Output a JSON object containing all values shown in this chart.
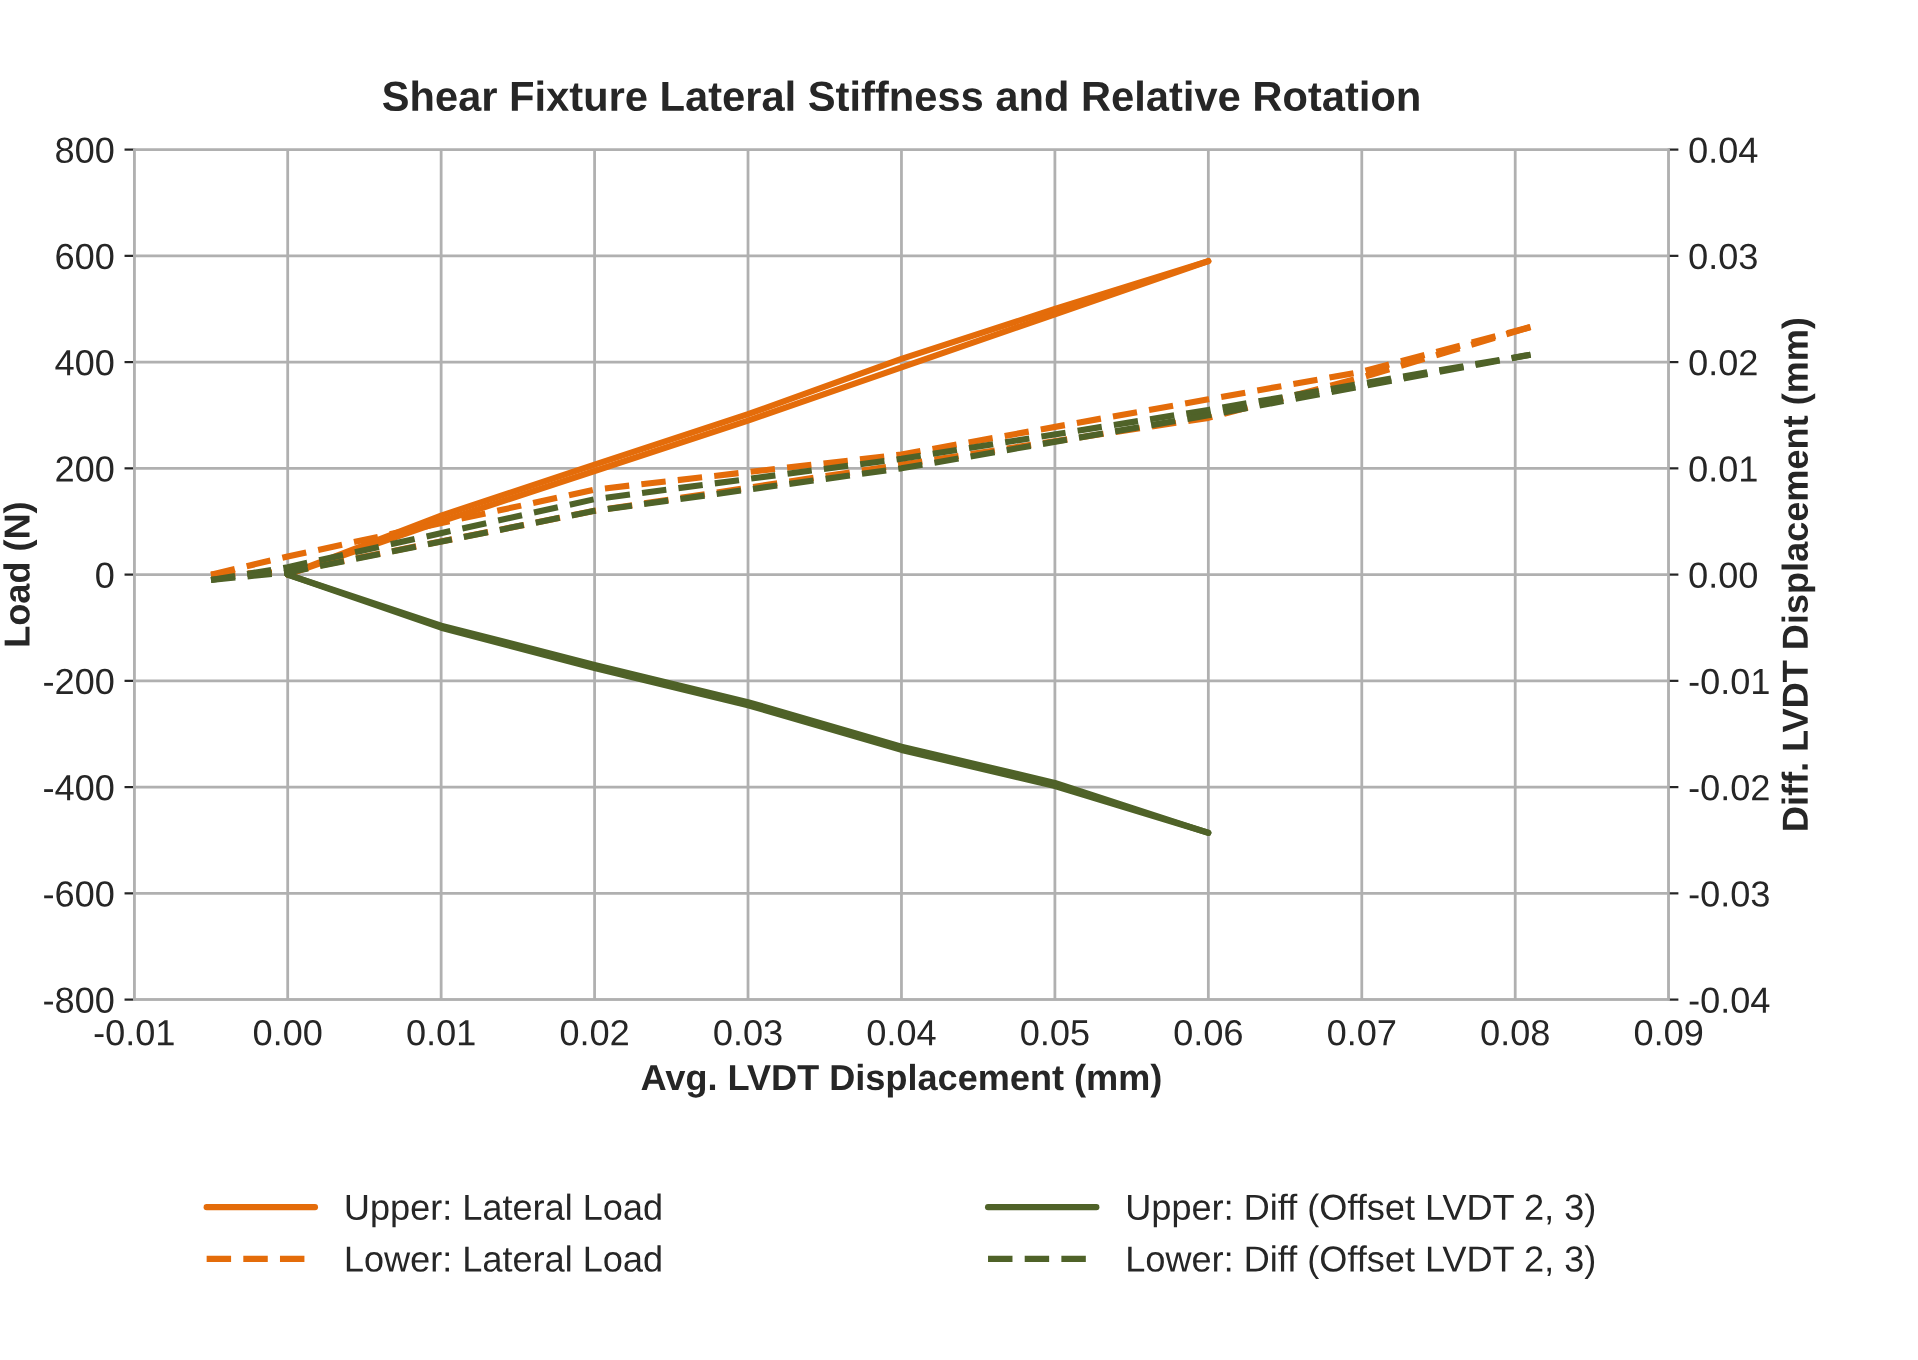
{
  "chart_data": {
    "type": "line",
    "title": "Shear Fixture Lateral Stiffness and Relative Rotation",
    "xlabel": "Avg. LVDT Displacement (mm)",
    "ylabel": "Load (N)",
    "y2label": "Diff. LVDT Displacement (mm)",
    "xlim": [
      -0.01,
      0.09
    ],
    "xticks": [
      {
        "value": -0.01,
        "label": "-0.01"
      },
      {
        "value": 0,
        "label": "0.00"
      },
      {
        "value": 0.01,
        "label": "0.01"
      },
      {
        "value": 0.02,
        "label": "0.02"
      },
      {
        "value": 0.03,
        "label": "0.03"
      },
      {
        "value": 0.04,
        "label": "0.04"
      },
      {
        "value": 0.05,
        "label": "0.05"
      },
      {
        "value": 0.06,
        "label": "0.06"
      },
      {
        "value": 0.07,
        "label": "0.07"
      },
      {
        "value": 0.08,
        "label": "0.08"
      },
      {
        "value": 0.09,
        "label": "0.09"
      }
    ],
    "ylim": [
      -800,
      800
    ],
    "yticks": [
      -800,
      -600,
      -400,
      -200,
      0,
      200,
      400,
      600,
      800
    ],
    "y2lim": [
      -0.04,
      0.04
    ],
    "y2ticks": [
      {
        "value": -0.04,
        "label": "-0.04"
      },
      {
        "value": -0.03,
        "label": "-0.03"
      },
      {
        "value": -0.02,
        "label": "-0.02"
      },
      {
        "value": -0.01,
        "label": "-0.01"
      },
      {
        "value": 0,
        "label": "0.00"
      },
      {
        "value": 0.01,
        "label": "0.01"
      },
      {
        "value": 0.02,
        "label": "0.02"
      },
      {
        "value": 0.03,
        "label": "0.03"
      },
      {
        "value": 0.04,
        "label": "0.04"
      }
    ],
    "grid": true,
    "legend": "bottom",
    "marker": "none",
    "series": [
      {
        "name": "Upper: Lateral Load",
        "color": "#e46c0a",
        "line_style": "solid",
        "x": [
          0,
          0.01,
          0.02,
          0.03,
          0.04,
          0.05,
          0.06
        ],
        "values": [
          0,
          111,
          207,
          302,
          406,
          500,
          590
        ]
      },
      {
        "name": "Lower: Lateral Load",
        "color": "#e46c0a",
        "line_style": "dashed",
        "x": [
          -0.005,
          0,
          0.02,
          0.04,
          0.06,
          0.07,
          0.081
        ],
        "values": [
          0,
          34,
          160,
          226,
          330,
          382,
          466
        ]
      },
      {
        "name": "Upper: Diff (Offset LVDT 2, 3)",
        "color": "#4f6228",
        "line_style": "solid",
        "axis": "y2",
        "x": [
          0,
          0.01,
          0.02,
          0.03,
          0.04,
          0.05,
          0.06
        ],
        "values": [
          0,
          -0.005,
          -0.0088,
          -0.0123,
          -0.0165,
          -0.0199,
          -0.0243
        ]
      },
      {
        "name": "Lower: Diff (Offset LVDT 2, 3)",
        "color": "#4f6228",
        "line_style": "dashed",
        "axis": "y2",
        "x": [
          -0.005,
          0,
          0.02,
          0.04,
          0.06,
          0.081
        ],
        "values": [
          -0.0005,
          0.0007,
          0.0071,
          0.0109,
          0.0155,
          0.0207
        ]
      },
      {
        "color": "#e46c0a",
        "line_style": "solid",
        "x": [
          0,
          0.01,
          0.02,
          0.03,
          0.04,
          0.05,
          0.06
        ],
        "values": [
          0,
          100,
          195,
          290,
          390,
          490,
          590
        ]
      },
      {
        "color": "#e46c0a",
        "line_style": "dashed",
        "x": [
          -0.005,
          0,
          0.02,
          0.04,
          0.06,
          0.07,
          0.081
        ],
        "values": [
          0,
          5,
          120,
          207,
          295,
          371,
          466
        ]
      },
      {
        "color": "#4f6228",
        "line_style": "solid",
        "axis": "y2",
        "x": [
          0,
          0.01,
          0.02,
          0.03,
          0.04,
          0.05,
          0.06
        ],
        "values": [
          0,
          -0.0048,
          -0.0085,
          -0.012,
          -0.0162,
          -0.0196,
          -0.0243
        ]
      },
      {
        "color": "#4f6228",
        "line_style": "dashed",
        "axis": "y2",
        "x": [
          -0.005,
          0,
          0.02,
          0.04,
          0.06,
          0.081
        ],
        "values": [
          -0.0005,
          0.0002,
          0.006,
          0.01,
          0.015,
          0.0207
        ]
      }
    ]
  }
}
